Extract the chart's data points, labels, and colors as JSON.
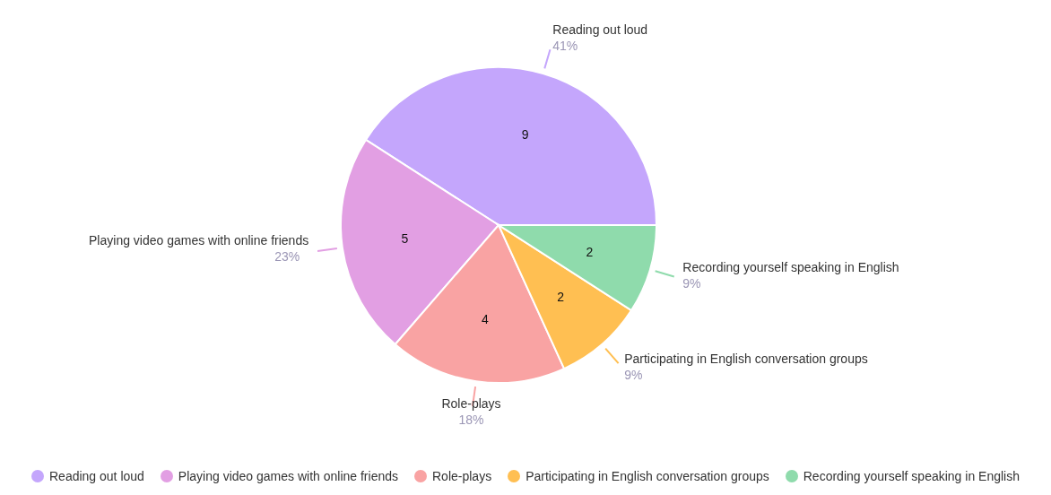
{
  "chart_data": {
    "type": "pie",
    "categories": [
      "Reading out loud",
      "Playing video games with online friends",
      "Role-plays",
      "Participating in English conversation groups",
      "Recording yourself speaking in English"
    ],
    "values": [
      9,
      5,
      4,
      2,
      2
    ],
    "colors": [
      "#c4a6fc",
      "#e29fe3",
      "#f9a3a3",
      "#ffbf52",
      "#8fdbac"
    ],
    "data_labels": true,
    "annotations": [
      "41%",
      "23%",
      "18%",
      "9%",
      "9%"
    ],
    "legend": "bottom"
  }
}
